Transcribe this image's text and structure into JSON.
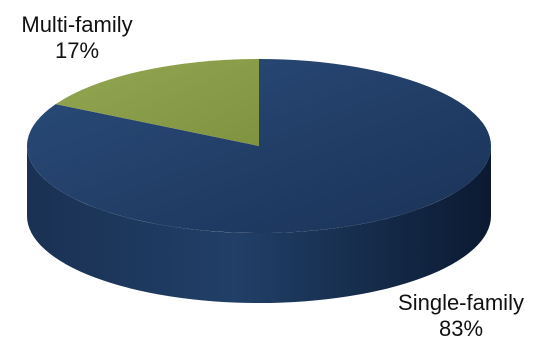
{
  "chart_data": {
    "type": "pie",
    "style": "3d",
    "title": "",
    "slices": [
      {
        "label": "Single-family",
        "value": 83,
        "value_label": "83%",
        "color": "#1f3b63"
      },
      {
        "label": "Multi-family",
        "value": 17,
        "value_label": "17%",
        "color": "#8a9d48"
      }
    ],
    "legend": "none"
  }
}
